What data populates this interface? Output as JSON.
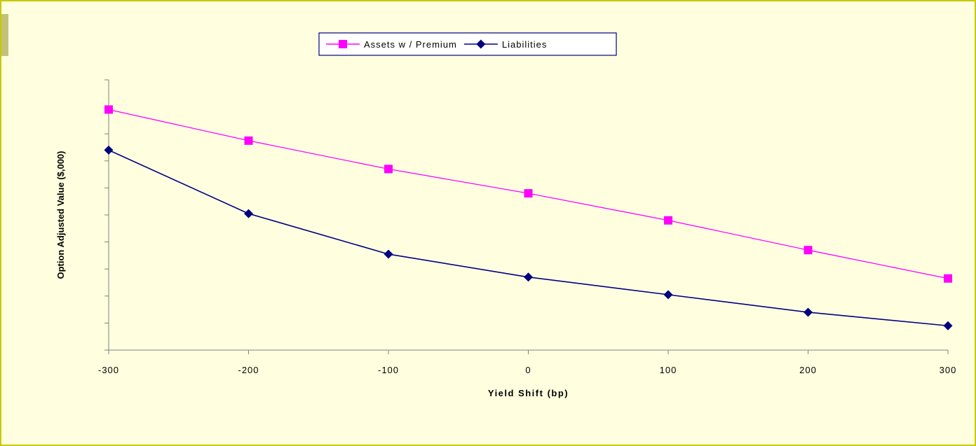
{
  "chart_data": {
    "type": "line",
    "title": "",
    "xlabel": "Yield Shift (bp)",
    "ylabel": "Option Adjusted Value ($,000)",
    "x": [
      -300,
      -200,
      -100,
      0,
      100,
      200,
      300
    ],
    "xlim": [
      -300,
      300
    ],
    "ylim": [
      0,
      10
    ],
    "y_ticks_labeled": false,
    "grid": false,
    "legend_position": "top-center",
    "series": [
      {
        "name": "Assets w / Premium",
        "color": "#ff00ff",
        "marker": "square",
        "values": [
          8.9,
          7.75,
          6.7,
          5.8,
          4.8,
          3.7,
          2.65
        ]
      },
      {
        "name": "Liabilities",
        "color": "#000080",
        "marker": "diamond",
        "values": [
          7.4,
          5.05,
          3.55,
          2.7,
          2.05,
          1.4,
          0.9
        ]
      }
    ]
  }
}
